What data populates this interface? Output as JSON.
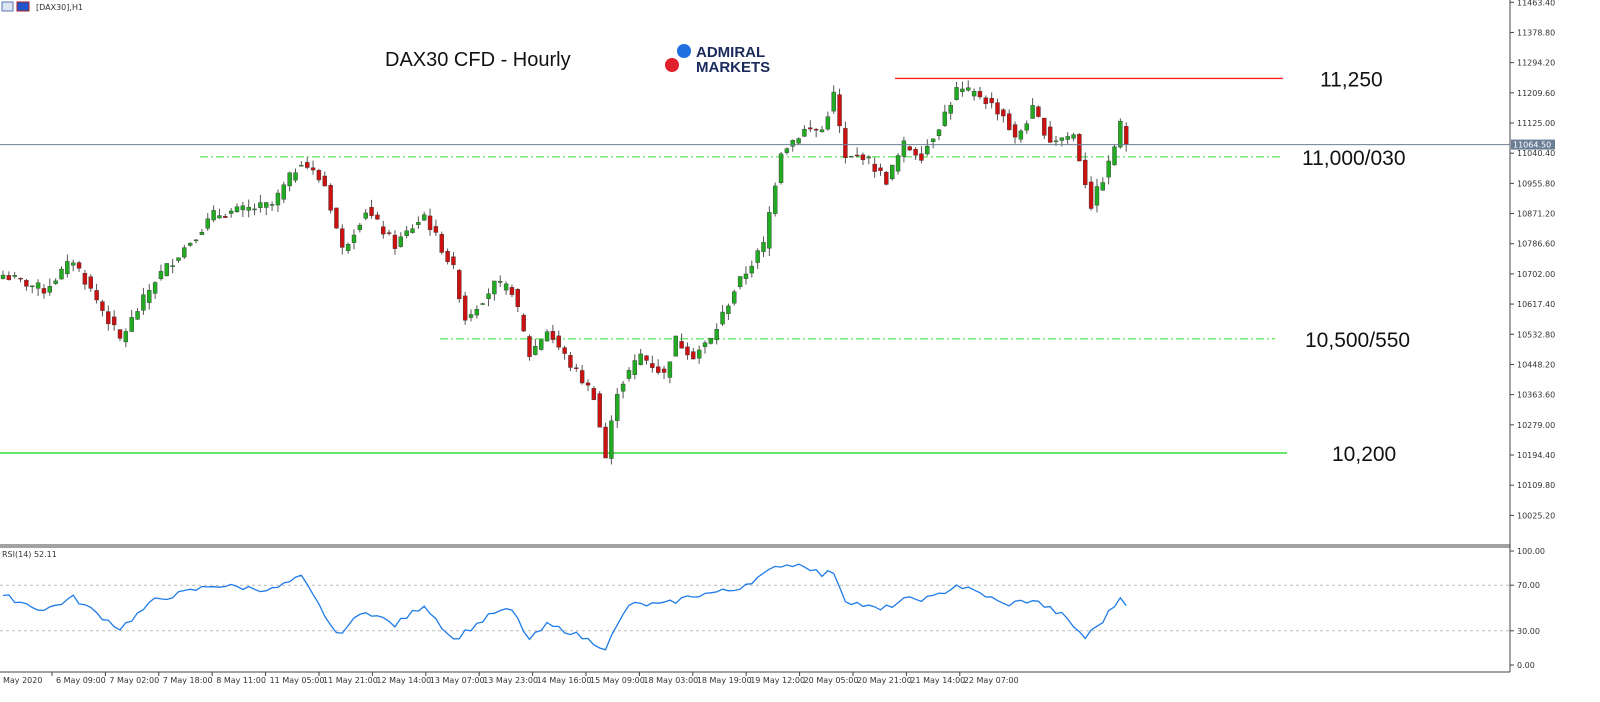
{
  "header": {
    "symbol_label": "[DAX30],H1",
    "icons": [
      "chart-window-icon",
      "strategy-tester-icon"
    ]
  },
  "title": "DAX30 CFD - Hourly",
  "logo": {
    "line1": "ADMIRAL",
    "line2": "MARKETS",
    "colors": {
      "blue": "#1f6fe0",
      "red": "#e0202a",
      "text": "#1a2a5c"
    }
  },
  "chart_data": {
    "type": "candlestick",
    "timeframe": "H1",
    "price_axis": {
      "ticks": [
        "11463.40",
        "11378.80",
        "11294.20",
        "11209.60",
        "11125.00",
        "11040.40",
        "10955.80",
        "10871.20",
        "10786.60",
        "10702.00",
        "10617.40",
        "10532.80",
        "10448.20",
        "10363.60",
        "10279.00",
        "10194.40",
        "10109.80",
        "10025.20"
      ],
      "range": [
        9970,
        11465
      ]
    },
    "current_price": "11064.50",
    "time_axis": {
      "ticks": [
        "May 2020",
        "6 May 09:00",
        "7 May 02:00",
        "7 May 18:00",
        "8 May 11:00",
        "11 May 05:00",
        "11 May 21:00",
        "12 May 14:00",
        "13 May 07:00",
        "13 May 23:00",
        "14 May 16:00",
        "15 May 09:00",
        "18 May 03:00",
        "18 May 19:00",
        "19 May 12:00",
        "20 May 05:00",
        "20 May 21:00",
        "21 May 14:00",
        "22 May 07:00"
      ]
    },
    "close_path": [
      [
        0,
        10699
      ],
      [
        7,
        10657
      ],
      [
        12,
        10741
      ],
      [
        20,
        10517
      ],
      [
        26,
        10685
      ],
      [
        36,
        10867
      ],
      [
        46,
        10895
      ],
      [
        51,
        11021
      ],
      [
        55,
        10951
      ],
      [
        58,
        10769
      ],
      [
        62,
        10881
      ],
      [
        67,
        10783
      ],
      [
        72,
        10867
      ],
      [
        77,
        10713
      ],
      [
        79,
        10578
      ],
      [
        84,
        10671
      ],
      [
        87,
        10657
      ],
      [
        90,
        10475
      ],
      [
        93,
        10545
      ],
      [
        97,
        10447
      ],
      [
        101,
        10362
      ],
      [
        103,
        10186
      ],
      [
        105,
        10377
      ],
      [
        109,
        10475
      ],
      [
        113,
        10419
      ],
      [
        115,
        10517
      ],
      [
        118,
        10475
      ],
      [
        121,
        10517
      ],
      [
        125,
        10657
      ],
      [
        130,
        10783
      ],
      [
        133,
        11049
      ],
      [
        137,
        11105
      ],
      [
        140,
        11105
      ],
      [
        142,
        11203
      ],
      [
        144,
        11021
      ],
      [
        147,
        11035
      ],
      [
        151,
        10965
      ],
      [
        154,
        11063
      ],
      [
        157,
        11035
      ],
      [
        160,
        11119
      ],
      [
        163,
        11217
      ],
      [
        167,
        11203
      ],
      [
        171,
        11147
      ],
      [
        173,
        11077
      ],
      [
        176,
        11161
      ],
      [
        179,
        11077
      ],
      [
        183,
        11091
      ],
      [
        186,
        10895
      ],
      [
        189,
        11007
      ],
      [
        191,
        11119
      ],
      [
        192,
        11064.5
      ]
    ],
    "levels": [
      {
        "label": "11,250",
        "price": 11250,
        "style": "solid",
        "color": "#ff2020"
      },
      {
        "label": "11,000/030",
        "price": 11030,
        "style": "dashdot",
        "color": "#33dd33"
      },
      {
        "label": "10,500/550",
        "price": 10520,
        "style": "dashdot",
        "color": "#33dd33"
      },
      {
        "label": "10,200",
        "price": 10200,
        "style": "solid",
        "color": "#33dd33"
      }
    ],
    "colors": {
      "bull": "#22aa22",
      "bear": "#cc1111",
      "wick": "#555555",
      "current_line": "#6a7f96"
    },
    "rsi": {
      "label": "RSI(14) 52.11",
      "ticks": [
        "100.00",
        "70.00",
        "30.00",
        "0.00"
      ],
      "levels": [
        70,
        30
      ],
      "range": [
        0,
        100
      ],
      "color": "#1e7be8",
      "path": [
        [
          0,
          61
        ],
        [
          7,
          48
        ],
        [
          12,
          59
        ],
        [
          20,
          32
        ],
        [
          26,
          57
        ],
        [
          36,
          70
        ],
        [
          46,
          66
        ],
        [
          51,
          77
        ],
        [
          55,
          44
        ],
        [
          57,
          26
        ],
        [
          62,
          48
        ],
        [
          67,
          35
        ],
        [
          72,
          53
        ],
        [
          77,
          22
        ],
        [
          84,
          46
        ],
        [
          87,
          48
        ],
        [
          90,
          22
        ],
        [
          93,
          35
        ],
        [
          97,
          29
        ],
        [
          103,
          15
        ],
        [
          107,
          53
        ],
        [
          113,
          53
        ],
        [
          118,
          61
        ],
        [
          125,
          66
        ],
        [
          130,
          79
        ],
        [
          133,
          88
        ],
        [
          137,
          88
        ],
        [
          140,
          79
        ],
        [
          142,
          82
        ],
        [
          144,
          57
        ],
        [
          150,
          48
        ],
        [
          154,
          57
        ],
        [
          159,
          59
        ],
        [
          163,
          70
        ],
        [
          168,
          61
        ],
        [
          171,
          53
        ],
        [
          176,
          57
        ],
        [
          181,
          44
        ],
        [
          185,
          24
        ],
        [
          188,
          39
        ],
        [
          191,
          59
        ],
        [
          192,
          52.11
        ]
      ]
    }
  }
}
